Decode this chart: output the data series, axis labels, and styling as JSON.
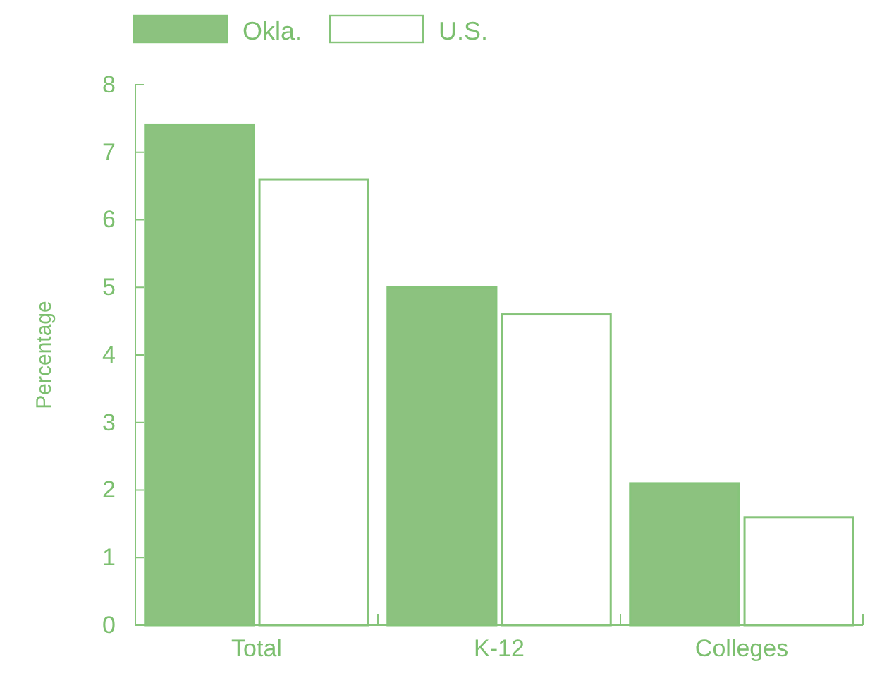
{
  "chart_data": {
    "type": "bar",
    "ylabel": "Percentage",
    "categories": [
      "Total",
      "K-12",
      "Colleges"
    ],
    "series": [
      {
        "name": "Okla.",
        "color": "#8cc27f",
        "values": [
          7.4,
          5.0,
          2.1
        ]
      },
      {
        "name": "U.S.",
        "color": "#ffffff",
        "values": [
          6.6,
          4.6,
          1.6
        ]
      }
    ],
    "ylim": [
      0,
      8
    ],
    "yticks": [
      0,
      1,
      2,
      3,
      4,
      5,
      6,
      7,
      8
    ],
    "legend": "top left",
    "grid": false
  }
}
